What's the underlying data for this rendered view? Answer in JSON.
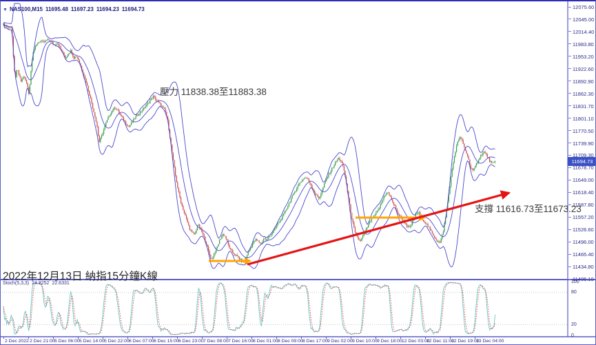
{
  "symbol_bar": {
    "symbol": "NAS100,M15",
    "open": "11695.48",
    "high": "11697.23",
    "low": "11694.23",
    "close": "11694.73"
  },
  "price_axis": {
    "current_price": "11694.73",
    "labels": [
      "12075.60",
      "12045.00",
      "12014.40",
      "11983.80",
      "11953.20",
      "11922.60",
      "11892.90",
      "11862.30",
      "11831.70",
      "11801.10",
      "11770.50",
      "11739.90",
      "11709.30",
      "11678.70",
      "11649.00",
      "11618.40",
      "11587.80",
      "11557.20",
      "11526.60",
      "11496.00",
      "11465.40",
      "11434.80",
      "11405.10"
    ]
  },
  "time_axis": {
    "labels": [
      "2 Dec 2022",
      "2 Dec 21:00",
      "5 Dec 06:00",
      "5 Dec 14:00",
      "5 Dec 22:00",
      "6 Dec 07:00",
      "6 Dec 15:00",
      "6 Dec 23:00",
      "7 Dec 08:00",
      "7 Dec 16:00",
      "8 Dec 01:00",
      "8 Dec 09:00",
      "8 Dec 17:00",
      "9 Dec 02:00",
      "9 Dec 10:00",
      "9 Dec 18:00",
      "12 Dec 03:00",
      "12 Dec 11:00",
      "12 Dec 19:00",
      "13 Dec 04:00"
    ]
  },
  "annotations": {
    "resistance": "壓力 11838.38至11883.38",
    "support": "支撐 11616.73至11673.23",
    "date_note": "2022年12月13日 納指15分鐘K線"
  },
  "indicator": {
    "name": "Stoch(5,3,3)",
    "k_value": "24.8252",
    "d_value": "22.6331",
    "scale": [
      "100",
      "80",
      "20",
      "0"
    ]
  },
  "chart_data": {
    "type": "candlestick",
    "symbol": "NAS100",
    "timeframe": "M15",
    "overlay": "Bollinger Bands",
    "sub_indicator": "Stochastic (5,3,3)",
    "ylim": [
      11405.1,
      12075.6
    ],
    "stoch_range": [
      0,
      100
    ],
    "current_price_value": 11694.73,
    "price_points": [
      [
        3,
        12032
      ],
      [
        8,
        12028
      ],
      [
        12,
        12022
      ],
      [
        15,
        12030
      ],
      [
        17,
        12000
      ],
      [
        19,
        11930
      ],
      [
        21,
        11900
      ],
      [
        24,
        11922
      ],
      [
        27,
        11905
      ],
      [
        30,
        11890
      ],
      [
        33,
        11905
      ],
      [
        36,
        11895
      ],
      [
        39,
        11880
      ],
      [
        41,
        11862
      ],
      [
        43,
        11895
      ],
      [
        45,
        11940
      ],
      [
        47,
        11965
      ],
      [
        50,
        11975
      ],
      [
        54,
        11988
      ],
      [
        58,
        11992
      ],
      [
        62,
        11988
      ],
      [
        66,
        11992
      ],
      [
        70,
        11995
      ],
      [
        74,
        11988
      ],
      [
        78,
        11982
      ],
      [
        82,
        11988
      ],
      [
        86,
        11975
      ],
      [
        90,
        11962
      ],
      [
        94,
        11950
      ],
      [
        98,
        11960
      ],
      [
        102,
        11968
      ],
      [
        106,
        11950
      ],
      [
        110,
        11955
      ],
      [
        113,
        11945
      ],
      [
        116,
        11930
      ],
      [
        120,
        11912
      ],
      [
        124,
        11890
      ],
      [
        128,
        11865
      ],
      [
        131,
        11845
      ],
      [
        134,
        11825
      ],
      [
        137,
        11805
      ],
      [
        140,
        11780
      ],
      [
        143,
        11742
      ],
      [
        146,
        11755
      ],
      [
        149,
        11770
      ],
      [
        152,
        11785
      ],
      [
        155,
        11798
      ],
      [
        158,
        11810
      ],
      [
        162,
        11820
      ],
      [
        166,
        11828
      ],
      [
        170,
        11820
      ],
      [
        174,
        11808
      ],
      [
        178,
        11798
      ],
      [
        182,
        11788
      ],
      [
        186,
        11780
      ],
      [
        190,
        11790
      ],
      [
        194,
        11800
      ],
      [
        198,
        11808
      ],
      [
        202,
        11815
      ],
      [
        206,
        11822
      ],
      [
        210,
        11830
      ],
      [
        214,
        11838
      ],
      [
        218,
        11848
      ],
      [
        222,
        11855
      ],
      [
        226,
        11845
      ],
      [
        230,
        11838
      ],
      [
        234,
        11830
      ],
      [
        238,
        11822
      ],
      [
        242,
        11800
      ],
      [
        246,
        11750
      ],
      [
        250,
        11700
      ],
      [
        254,
        11655
      ],
      [
        258,
        11620
      ],
      [
        262,
        11592
      ],
      [
        266,
        11570
      ],
      [
        270,
        11550
      ],
      [
        274,
        11530
      ],
      [
        278,
        11518
      ],
      [
        282,
        11515
      ],
      [
        286,
        11540
      ],
      [
        290,
        11528
      ],
      [
        294,
        11512
      ],
      [
        298,
        11495
      ],
      [
        302,
        11470
      ],
      [
        306,
        11452
      ],
      [
        310,
        11468
      ],
      [
        314,
        11482
      ],
      [
        318,
        11502
      ],
      [
        322,
        11515
      ],
      [
        326,
        11510
      ],
      [
        330,
        11490
      ],
      [
        334,
        11475
      ],
      [
        338,
        11468
      ],
      [
        342,
        11462
      ],
      [
        346,
        11455
      ],
      [
        350,
        11448
      ],
      [
        354,
        11450
      ],
      [
        358,
        11466
      ],
      [
        362,
        11480
      ],
      [
        366,
        11492
      ],
      [
        370,
        11502
      ],
      [
        374,
        11497
      ],
      [
        378,
        11492
      ],
      [
        382,
        11506
      ],
      [
        386,
        11500
      ],
      [
        390,
        11512
      ],
      [
        394,
        11518
      ],
      [
        398,
        11528
      ],
      [
        402,
        11540
      ],
      [
        406,
        11550
      ],
      [
        410,
        11562
      ],
      [
        414,
        11576
      ],
      [
        418,
        11590
      ],
      [
        422,
        11604
      ],
      [
        426,
        11618
      ],
      [
        430,
        11630
      ],
      [
        434,
        11642
      ],
      [
        438,
        11650
      ],
      [
        442,
        11656
      ],
      [
        446,
        11650
      ],
      [
        450,
        11638
      ],
      [
        454,
        11622
      ],
      [
        458,
        11610
      ],
      [
        462,
        11604
      ],
      [
        466,
        11620
      ],
      [
        470,
        11640
      ],
      [
        474,
        11656
      ],
      [
        478,
        11668
      ],
      [
        482,
        11680
      ],
      [
        486,
        11692
      ],
      [
        490,
        11702
      ],
      [
        494,
        11696
      ],
      [
        498,
        11676
      ],
      [
        502,
        11636
      ],
      [
        506,
        11590
      ],
      [
        510,
        11552
      ],
      [
        514,
        11520
      ],
      [
        518,
        11505
      ],
      [
        522,
        11498
      ],
      [
        526,
        11512
      ],
      [
        530,
        11525
      ],
      [
        534,
        11540
      ],
      [
        538,
        11552
      ],
      [
        542,
        11560
      ],
      [
        546,
        11570
      ],
      [
        550,
        11582
      ],
      [
        554,
        11598
      ],
      [
        558,
        11614
      ],
      [
        562,
        11618
      ],
      [
        566,
        11606
      ],
      [
        570,
        11590
      ],
      [
        574,
        11576
      ],
      [
        578,
        11562
      ],
      [
        582,
        11554
      ],
      [
        586,
        11546
      ],
      [
        590,
        11534
      ],
      [
        594,
        11530
      ],
      [
        598,
        11548
      ],
      [
        602,
        11562
      ],
      [
        606,
        11570
      ],
      [
        610,
        11560
      ],
      [
        614,
        11548
      ],
      [
        618,
        11540
      ],
      [
        622,
        11530
      ],
      [
        626,
        11518
      ],
      [
        630,
        11508
      ],
      [
        634,
        11498
      ],
      [
        638,
        11494
      ],
      [
        642,
        11520
      ],
      [
        646,
        11560
      ],
      [
        650,
        11610
      ],
      [
        654,
        11660
      ],
      [
        658,
        11705
      ],
      [
        662,
        11735
      ],
      [
        666,
        11755
      ],
      [
        670,
        11744
      ],
      [
        674,
        11724
      ],
      [
        678,
        11706
      ],
      [
        682,
        11680
      ],
      [
        686,
        11670
      ],
      [
        690,
        11686
      ],
      [
        694,
        11702
      ],
      [
        698,
        11712
      ],
      [
        702,
        11718
      ],
      [
        706,
        11708
      ],
      [
        710,
        11695
      ],
      [
        714,
        11688
      ],
      [
        718,
        11695
      ]
    ],
    "trend_line": {
      "x1": 358,
      "y1": 382,
      "x2": 738,
      "y2": 278
    },
    "support_arrows": [
      {
        "x1": 302,
        "x2": 362,
        "y": 377
      },
      {
        "x1": 515,
        "x2": 615,
        "y": 314
      }
    ],
    "colors": {
      "candle_up": "#3aa24e",
      "candle_down": "#c9514d",
      "bands": "#4747cf",
      "stoch_k": "#63c6c6",
      "stoch_d": "#e05353",
      "trend": "#e41414",
      "arrow": "#ffa500",
      "axis_text": "#2b2b8a",
      "badge_bg": "#3a50c5",
      "frame": "#5a5ac9",
      "grid_dotted": "#c8c8c8"
    }
  }
}
